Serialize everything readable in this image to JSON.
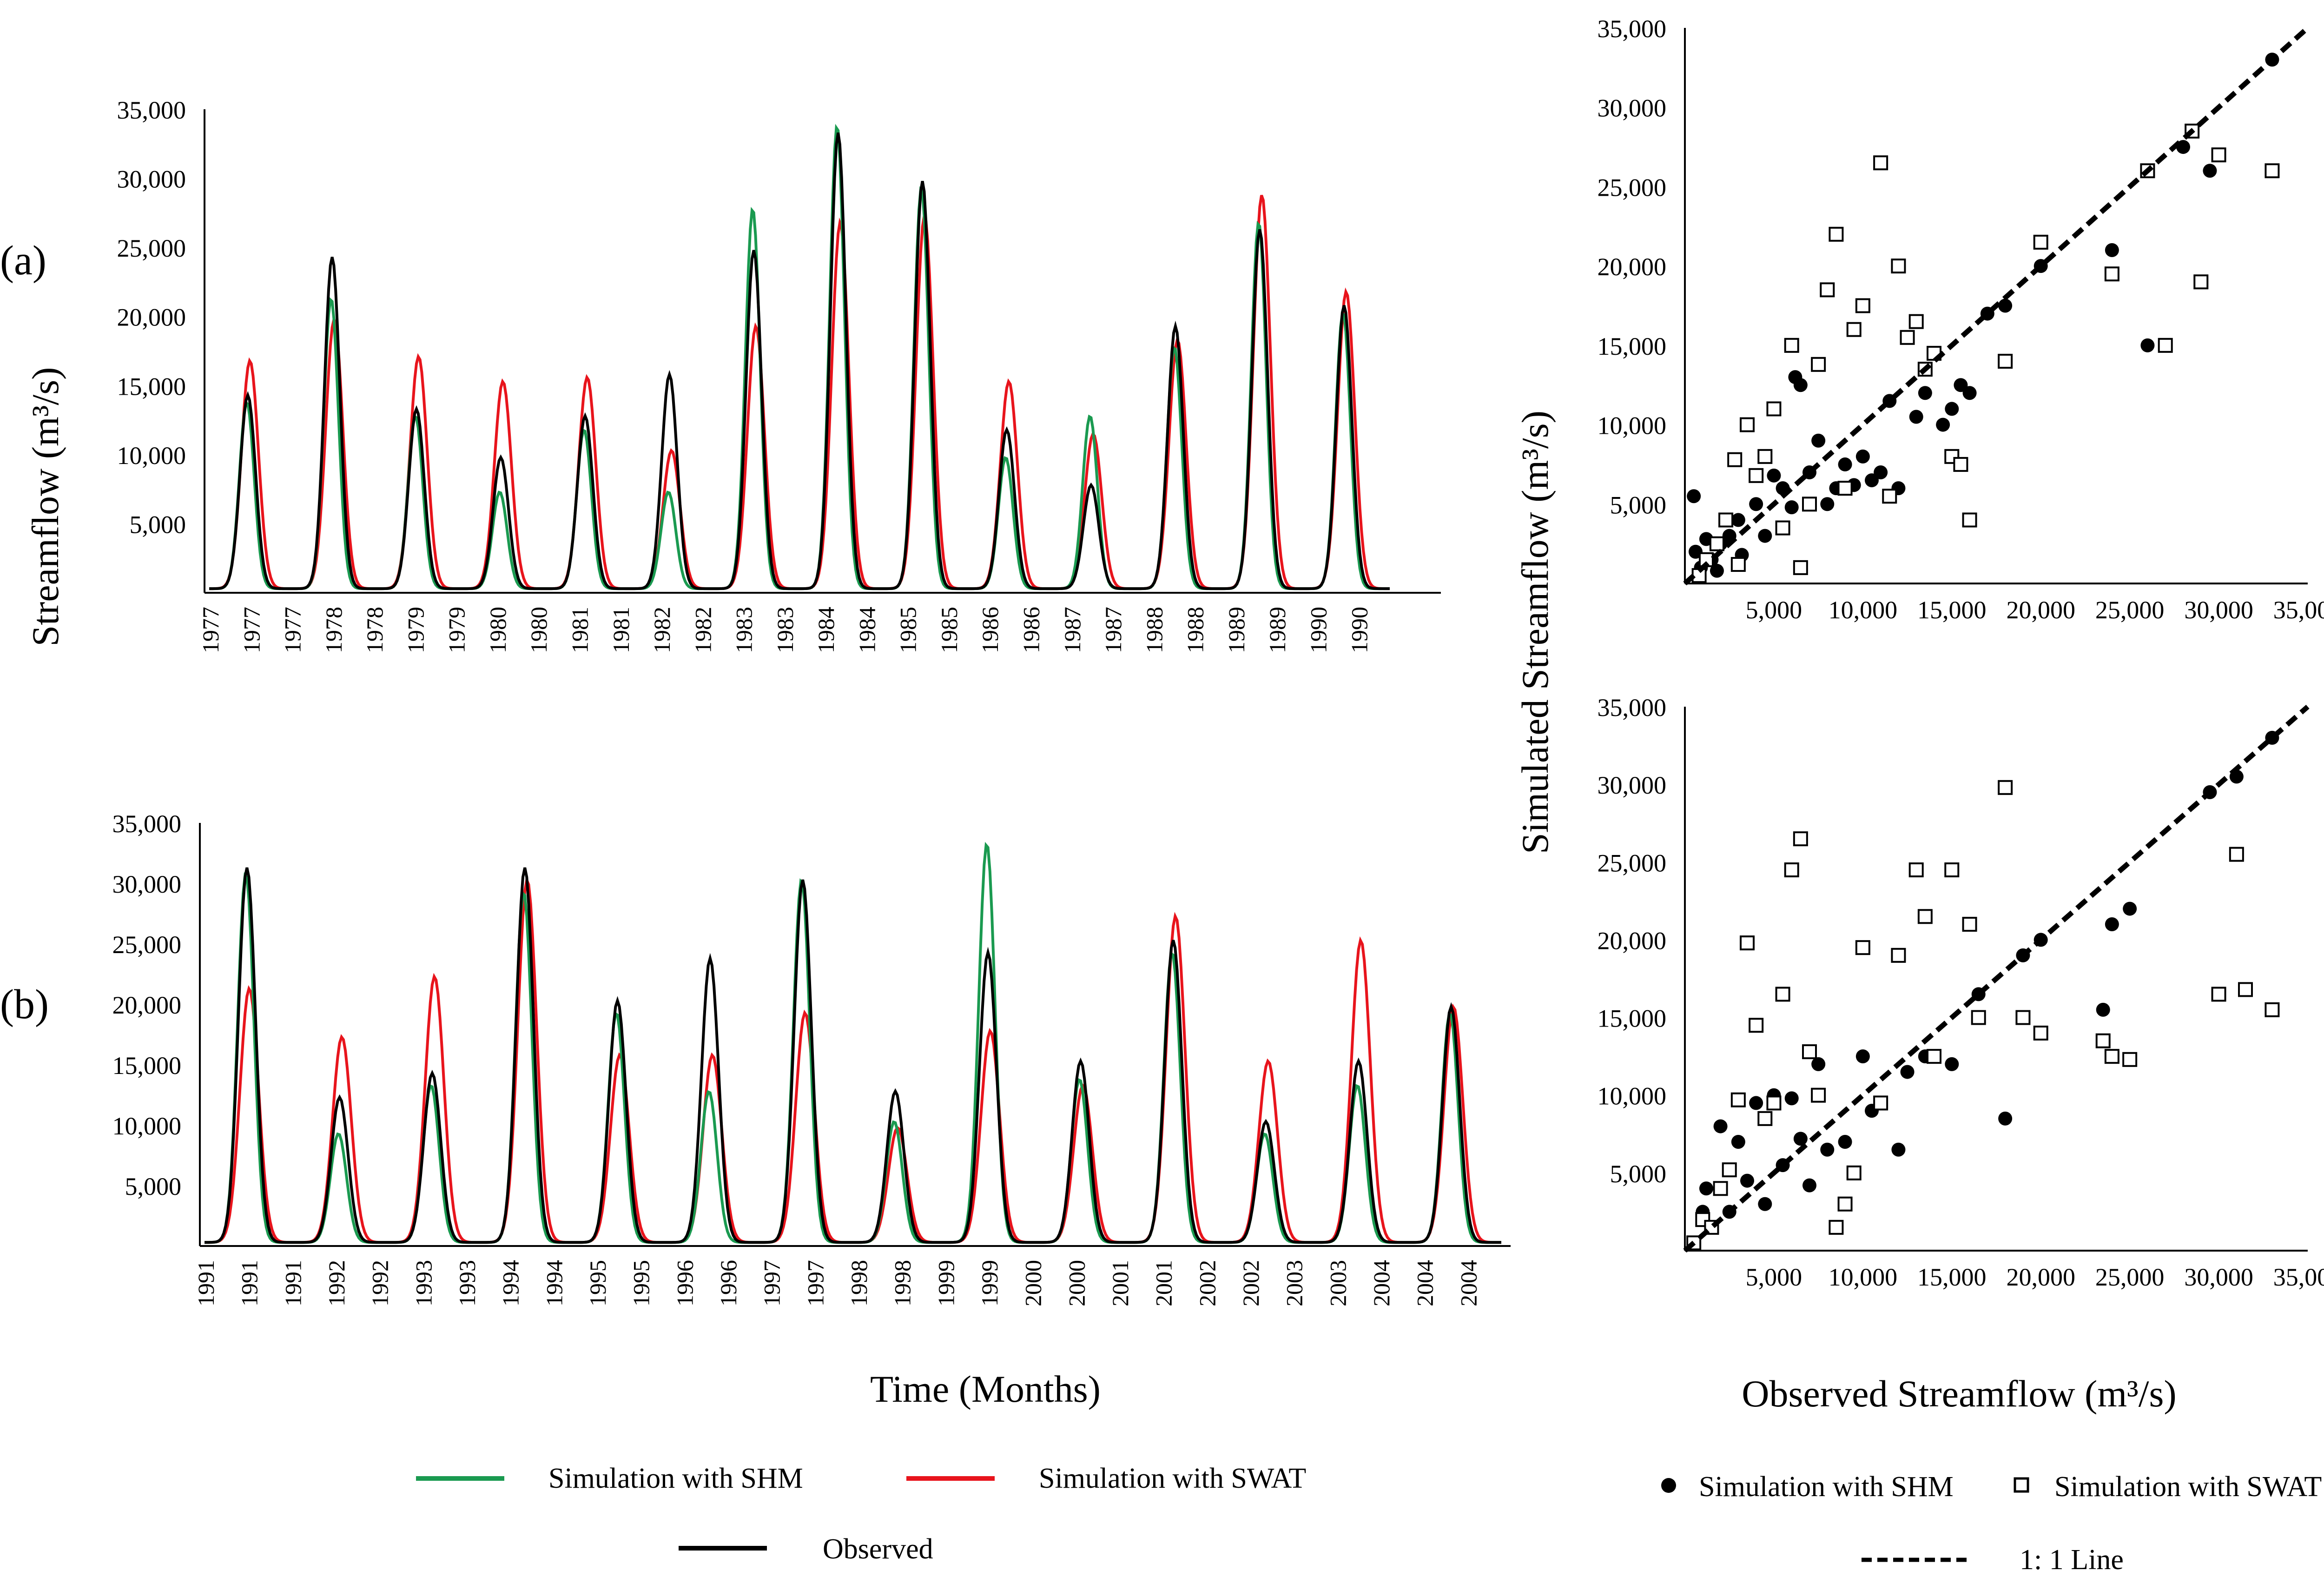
{
  "figure": {
    "y_label_left": "Streamflow (m³/s)",
    "x_label_left": "Time (Months)",
    "y_label_right": "Simulated Streamflow (m³/s)",
    "x_label_right": "Observed Streamflow (m³/s)",
    "panel_a": "(a)",
    "panel_b": "(b)",
    "legend_left": [
      {
        "label": "Simulation with SHM",
        "color": "#1a9a50"
      },
      {
        "label": "Simulation with SWAT",
        "color": "#e8141c"
      },
      {
        "label": "Observed",
        "color": "#000000"
      }
    ],
    "legend_right": [
      {
        "label": "Simulation with SHM",
        "marker": "filled-circle"
      },
      {
        "label": "Simulation with SWAT",
        "marker": "open-square"
      },
      {
        "label": "1: 1 Line",
        "marker": "dashed-line"
      }
    ]
  },
  "chart_data": [
    {
      "id": "ts_a",
      "type": "line",
      "ylim": [
        0,
        35000
      ],
      "y_ticks": [
        "5,000",
        "10,000",
        "15,000",
        "20,000",
        "25,000",
        "30,000",
        "35,000"
      ],
      "x_tick_labels": [
        "1977",
        "1977",
        "1977",
        "1978",
        "1978",
        "1979",
        "1979",
        "1980",
        "1980",
        "1981",
        "1981",
        "1982",
        "1982",
        "1983",
        "1983",
        "1984",
        "1984",
        "1985",
        "1985",
        "1986",
        "1986",
        "1987",
        "1987",
        "1988",
        "1988",
        "1989",
        "1989",
        "1990",
        "1990"
      ],
      "years": [
        "1977",
        "1978",
        "1979",
        "1980",
        "1981",
        "1982",
        "1983",
        "1984",
        "1985",
        "1986",
        "1987",
        "1988",
        "1989",
        "1990"
      ],
      "series": [
        {
          "name": "Observed",
          "color": "#000000",
          "annual_peaks": [
            14000,
            24000,
            13000,
            9500,
            12500,
            15500,
            24500,
            33000,
            29500,
            11500,
            7500,
            19000,
            26000,
            20500
          ]
        },
        {
          "name": "Simulation with SHM",
          "color": "#1a9a50",
          "annual_peaks": [
            13500,
            21000,
            12500,
            7000,
            11500,
            7000,
            27500,
            33500,
            29000,
            9500,
            12500,
            17500,
            26500,
            20000
          ]
        },
        {
          "name": "Simulation with SWAT",
          "color": "#e8141c",
          "annual_peaks": [
            16500,
            19500,
            16800,
            15000,
            15300,
            10000,
            19000,
            26500,
            27000,
            15000,
            11200,
            18000,
            28500,
            21500
          ]
        }
      ]
    },
    {
      "id": "ts_b",
      "type": "line",
      "ylim": [
        0,
        35000
      ],
      "y_ticks": [
        "5,000",
        "10,000",
        "15,000",
        "20,000",
        "25,000",
        "30,000",
        "35,000"
      ],
      "x_tick_labels": [
        "1991",
        "1991",
        "1991",
        "1992",
        "1992",
        "1993",
        "1993",
        "1994",
        "1994",
        "1995",
        "1995",
        "1996",
        "1996",
        "1997",
        "1997",
        "1998",
        "1998",
        "1999",
        "1999",
        "2000",
        "2000",
        "2001",
        "2001",
        "2002",
        "2002",
        "2003",
        "2003",
        "2004",
        "2004",
        "2004"
      ],
      "years": [
        "1991",
        "1992",
        "1993",
        "1994",
        "1995",
        "1996",
        "1997",
        "1998",
        "1999",
        "2000",
        "2001",
        "2002",
        "2003",
        "2004"
      ],
      "series": [
        {
          "name": "Observed",
          "color": "#000000",
          "annual_peaks": [
            31000,
            12000,
            14000,
            31000,
            20000,
            23500,
            30000,
            12500,
            24000,
            15000,
            25000,
            10000,
            15000,
            19500
          ]
        },
        {
          "name": "Simulation with SHM",
          "color": "#1a9a50",
          "annual_peaks": [
            30500,
            9000,
            13000,
            29000,
            19000,
            12500,
            30000,
            10000,
            33000,
            13500,
            24000,
            9000,
            13000,
            19000
          ]
        },
        {
          "name": "Simulation with SWAT",
          "color": "#e8141c",
          "annual_peaks": [
            21000,
            17000,
            22000,
            30000,
            15500,
            15500,
            19000,
            9500,
            17500,
            13000,
            27000,
            15000,
            25000,
            19500
          ]
        }
      ]
    },
    {
      "id": "sc_a",
      "type": "scatter",
      "xlim": [
        0,
        35000
      ],
      "ylim": [
        0,
        35000
      ],
      "x_ticks": [
        "5,000",
        "10,000",
        "15,000",
        "20,000",
        "25,000",
        "30,000",
        "35,000"
      ],
      "y_ticks": [
        "5,000",
        "10,000",
        "15,000",
        "20,000",
        "25,000",
        "30,000",
        "35,000"
      ],
      "series": [
        {
          "name": "Simulation with SHM",
          "marker": "filled-circle",
          "points": [
            [
              500,
              5500
            ],
            [
              600,
              2000
            ],
            [
              900,
              1000
            ],
            [
              1200,
              2800
            ],
            [
              1500,
              1500
            ],
            [
              1800,
              800
            ],
            [
              2000,
              2500
            ],
            [
              2500,
              3000
            ],
            [
              3000,
              4000
            ],
            [
              3200,
              1800
            ],
            [
              4000,
              5000
            ],
            [
              4500,
              3000
            ],
            [
              5000,
              6800
            ],
            [
              5500,
              6000
            ],
            [
              6000,
              4800
            ],
            [
              6200,
              13000
            ],
            [
              6500,
              12500
            ],
            [
              7000,
              7000
            ],
            [
              7500,
              9000
            ],
            [
              8000,
              5000
            ],
            [
              8500,
              6000
            ],
            [
              9000,
              7500
            ],
            [
              9500,
              6200
            ],
            [
              10000,
              8000
            ],
            [
              10500,
              6500
            ],
            [
              11000,
              7000
            ],
            [
              11500,
              11500
            ],
            [
              12000,
              6000
            ],
            [
              13000,
              10500
            ],
            [
              13500,
              12000
            ],
            [
              14500,
              10000
            ],
            [
              15000,
              11000
            ],
            [
              15500,
              12500
            ],
            [
              16000,
              12000
            ],
            [
              17000,
              17000
            ],
            [
              18000,
              17500
            ],
            [
              20000,
              20000
            ],
            [
              24000,
              21000
            ],
            [
              26000,
              15000
            ],
            [
              28000,
              27500
            ],
            [
              29500,
              26000
            ],
            [
              33000,
              33000
            ]
          ]
        },
        {
          "name": "Simulation with SWAT",
          "marker": "open-square",
          "points": [
            [
              800,
              500
            ],
            [
              1200,
              1500
            ],
            [
              1800,
              2500
            ],
            [
              2300,
              4000
            ],
            [
              2800,
              7800
            ],
            [
              3000,
              1200
            ],
            [
              3500,
              10000
            ],
            [
              4000,
              6800
            ],
            [
              4500,
              8000
            ],
            [
              5000,
              11000
            ],
            [
              5500,
              3500
            ],
            [
              6000,
              15000
            ],
            [
              6500,
              1000
            ],
            [
              7000,
              5000
            ],
            [
              7500,
              13800
            ],
            [
              8000,
              18500
            ],
            [
              8500,
              22000
            ],
            [
              9000,
              6000
            ],
            [
              9500,
              16000
            ],
            [
              10000,
              17500
            ],
            [
              11000,
              26500
            ],
            [
              11500,
              5500
            ],
            [
              12000,
              20000
            ],
            [
              12500,
              15500
            ],
            [
              13000,
              16500
            ],
            [
              13500,
              13500
            ],
            [
              14000,
              14500
            ],
            [
              15000,
              8000
            ],
            [
              15500,
              7500
            ],
            [
              16000,
              4000
            ],
            [
              18000,
              14000
            ],
            [
              20000,
              21500
            ],
            [
              24000,
              19500
            ],
            [
              26000,
              26000
            ],
            [
              27000,
              15000
            ],
            [
              28500,
              28500
            ],
            [
              29000,
              19000
            ],
            [
              30000,
              27000
            ],
            [
              33000,
              26000
            ]
          ]
        },
        {
          "name": "1: 1 Line",
          "style": "dashed",
          "from": [
            0,
            0
          ],
          "to": [
            35000,
            35000
          ]
        }
      ]
    },
    {
      "id": "sc_b",
      "type": "scatter",
      "xlim": [
        0,
        35000
      ],
      "ylim": [
        0,
        35000
      ],
      "x_ticks": [
        "5,000",
        "10,000",
        "15,000",
        "20,000",
        "25,000",
        "30,000",
        "35,000"
      ],
      "y_ticks": [
        "5,000",
        "10,000",
        "15,000",
        "20,000",
        "25,000",
        "30,000",
        "35,000"
      ],
      "series": [
        {
          "name": "Simulation with SHM",
          "marker": "filled-circle",
          "points": [
            [
              500,
              500
            ],
            [
              1000,
              2500
            ],
            [
              1200,
              4000
            ],
            [
              1500,
              1500
            ],
            [
              2000,
              8000
            ],
            [
              2500,
              2500
            ],
            [
              3000,
              7000
            ],
            [
              3500,
              4500
            ],
            [
              4000,
              9500
            ],
            [
              4500,
              3000
            ],
            [
              5000,
              10000
            ],
            [
              5500,
              5500
            ],
            [
              6000,
              9800
            ],
            [
              6500,
              7200
            ],
            [
              7000,
              4200
            ],
            [
              7500,
              12000
            ],
            [
              8000,
              6500
            ],
            [
              9000,
              7000
            ],
            [
              10000,
              12500
            ],
            [
              10500,
              9000
            ],
            [
              12000,
              6500
            ],
            [
              12500,
              11500
            ],
            [
              13500,
              12500
            ],
            [
              15000,
              12000
            ],
            [
              16500,
              16500
            ],
            [
              18000,
              8500
            ],
            [
              19000,
              19000
            ],
            [
              20000,
              20000
            ],
            [
              23500,
              15500
            ],
            [
              24000,
              21000
            ],
            [
              25000,
              22000
            ],
            [
              29500,
              29500
            ],
            [
              31000,
              30500
            ],
            [
              33000,
              33000
            ]
          ]
        },
        {
          "name": "Simulation with SWAT",
          "marker": "open-square",
          "points": [
            [
              500,
              500
            ],
            [
              1000,
              2000
            ],
            [
              1500,
              1500
            ],
            [
              2000,
              4000
            ],
            [
              2500,
              5200
            ],
            [
              3000,
              9700
            ],
            [
              3500,
              19800
            ],
            [
              4000,
              14500
            ],
            [
              4500,
              8500
            ],
            [
              5000,
              9500
            ],
            [
              5500,
              16500
            ],
            [
              6000,
              24500
            ],
            [
              6500,
              26500
            ],
            [
              7000,
              12800
            ],
            [
              7500,
              10000
            ],
            [
              8500,
              1500
            ],
            [
              9000,
              3000
            ],
            [
              9500,
              5000
            ],
            [
              10000,
              19500
            ],
            [
              11000,
              9500
            ],
            [
              12000,
              19000
            ],
            [
              13000,
              24500
            ],
            [
              13500,
              21500
            ],
            [
              14000,
              12500
            ],
            [
              15000,
              24500
            ],
            [
              16000,
              21000
            ],
            [
              16500,
              15000
            ],
            [
              18000,
              29800
            ],
            [
              19000,
              15000
            ],
            [
              20000,
              14000
            ],
            [
              23500,
              13500
            ],
            [
              24000,
              12500
            ],
            [
              25000,
              12300
            ],
            [
              30000,
              16500
            ],
            [
              31000,
              25500
            ],
            [
              31500,
              16800
            ],
            [
              33000,
              15500
            ]
          ]
        },
        {
          "name": "1: 1 Line",
          "style": "dashed",
          "from": [
            0,
            0
          ],
          "to": [
            35000,
            35000
          ]
        }
      ]
    }
  ]
}
